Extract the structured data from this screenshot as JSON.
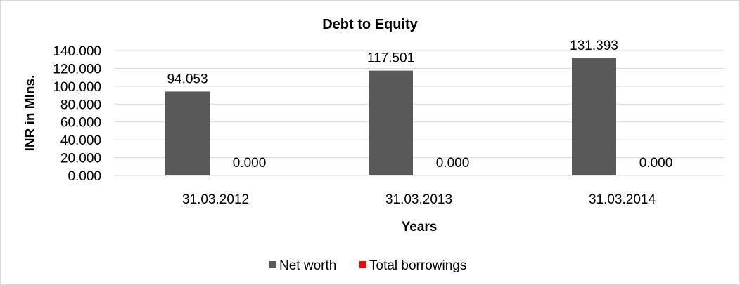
{
  "chart_data": {
    "type": "bar",
    "title": "Debt to Equity",
    "xlabel": "Years",
    "ylabel": "INR in Mlns.",
    "categories": [
      "31.03.2012",
      "31.03.2013",
      "31.03.2014"
    ],
    "series": [
      {
        "name": "Net worth",
        "values": [
          94.053,
          117.501,
          131.393
        ],
        "color": "#595959",
        "labels": [
          "94.053",
          "117.501",
          "131.393"
        ]
      },
      {
        "name": "Total borrowings",
        "values": [
          0,
          0,
          0
        ],
        "color": "#ff0000",
        "labels": [
          "0.000",
          "0.000",
          "0.000"
        ]
      }
    ],
    "ylim": [
      0,
      140
    ],
    "yticks": [
      "0.000",
      "20.000",
      "40.000",
      "60.000",
      "80.000",
      "100.000",
      "120.000",
      "140.000"
    ],
    "grid": true,
    "legend": "bottom"
  }
}
